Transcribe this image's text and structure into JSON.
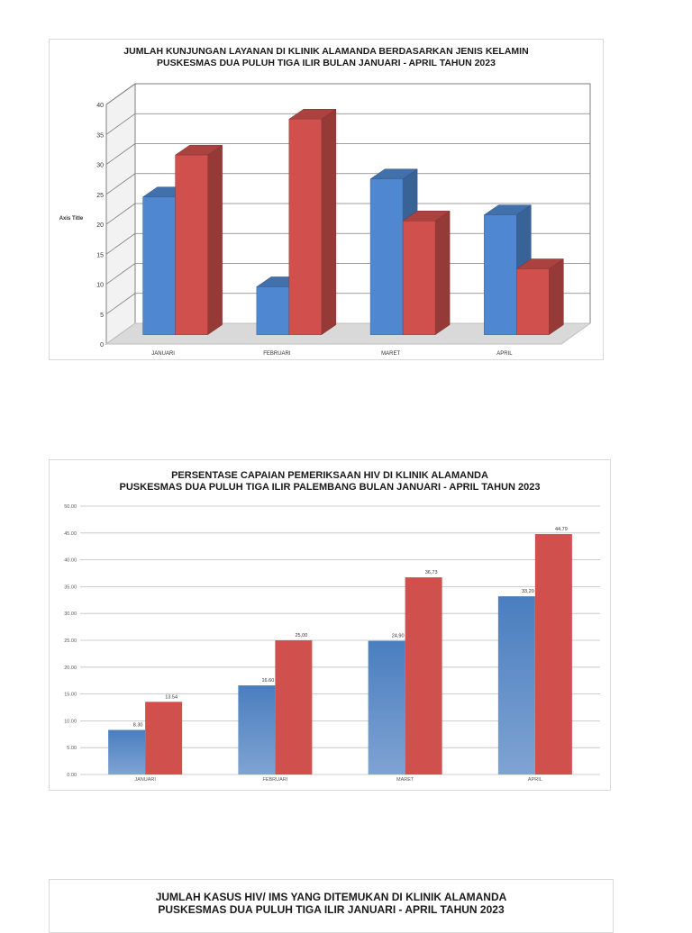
{
  "charts": [
    {
      "title_line1": "JUMLAH KUNJUNGAN LAYANAN DI KLINIK ALAMANDA BERDASARKAN JENIS KELAMIN",
      "title_line2": "PUSKESMAS DUA PULUH TIGA ILIR BULAN  JANUARI - APRIL TAHUN 2023",
      "ylabel": "Axis Title"
    },
    {
      "title_line1": "PERSENTASE CAPAIAN PEMERIKSAAN HIV DI KLINIK ALAMANDA",
      "title_line2": "PUSKESMAS DUA PULUH TIGA ILIR PALEMBANG BULAN JANUARI - APRIL TAHUN 2023"
    },
    {
      "title_line1": "JUMLAH KASUS HIV/ IMS YANG DITEMUKAN DI KLINIK ALAMANDA",
      "title_line2": "PUSKESMAS DUA PULUH TIGA ILIR JANUARI - APRIL TAHUN 2023"
    }
  ],
  "colors": {
    "blue": "#4f88d0",
    "red": "#cf504d",
    "grid": "#7f7f7f",
    "floor": "#d9d9d9"
  },
  "chart_data": [
    {
      "type": "bar",
      "style": "3d-clustered-column",
      "categories": [
        "JANUARI",
        "FEBRUARI",
        "MARET",
        "APRIL"
      ],
      "series": [
        {
          "values": [
            23,
            8,
            26,
            20
          ]
        },
        {
          "values": [
            30,
            36,
            19,
            11
          ]
        }
      ],
      "title": "JUMLAH KUNJUNGAN LAYANAN DI KLINIK ALAMANDA BERDASARKAN JENIS KELAMIN PUSKESMAS DUA PULUH TIGA ILIR BULAN  JANUARI - APRIL TAHUN 2023",
      "ylabel": "Axis Title",
      "ylim": [
        0,
        40
      ],
      "yticks": [
        "0",
        "5",
        "10",
        "15",
        "20",
        "25",
        "30",
        "35",
        "40"
      ],
      "grid": true,
      "legend": "none"
    },
    {
      "type": "bar",
      "categories": [
        "JANUARI",
        "FEBRUARI",
        "MARET",
        "APRIL"
      ],
      "series": [
        {
          "values": [
            8.3,
            16.6,
            24.9,
            33.2
          ],
          "labels": [
            "8.30",
            "16.60",
            "24,90",
            "33,20"
          ]
        },
        {
          "values": [
            13.54,
            25.0,
            36.73,
            44.79
          ],
          "labels": [
            "13.54",
            "25,00",
            "36,73",
            "44,79"
          ]
        }
      ],
      "title": "PERSENTASE CAPAIAN PEMERIKSAAN HIV DI KLINIK ALAMANDA PUSKESMAS DUA PULUH TIGA ILIR PALEMBANG BULAN JANUARI - APRIL TAHUN 2023",
      "ylim": [
        0,
        50
      ],
      "yticks": [
        "0.00",
        "5.00",
        "10.00",
        "15.00",
        "20.00",
        "25.00",
        "30.00",
        "35.00",
        "40.00",
        "45.00",
        "50.00"
      ],
      "grid": true,
      "legend": "none"
    }
  ]
}
